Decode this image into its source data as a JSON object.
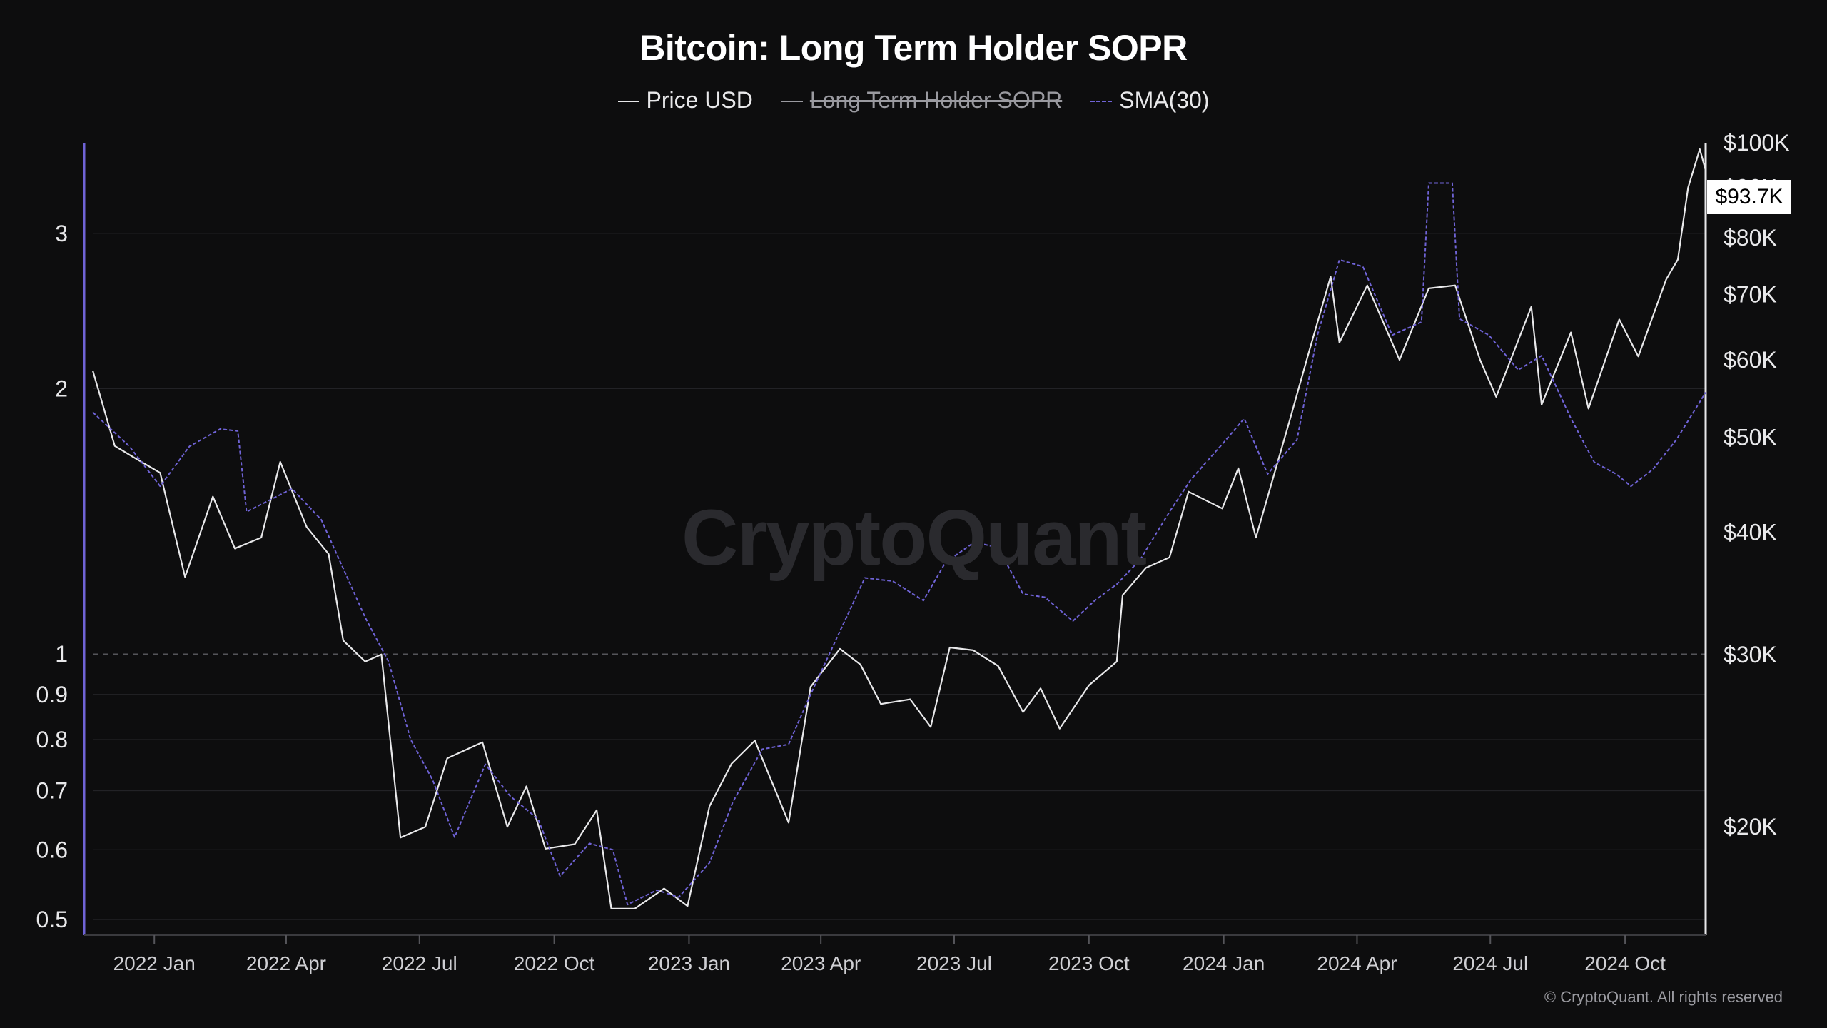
{
  "title": "Bitcoin: Long Term Holder SOPR",
  "legend": [
    {
      "label": "Price USD",
      "style": "solid",
      "color": "#e8e8ea",
      "hidden": false
    },
    {
      "label": "Long Term Holder SOPR",
      "style": "solid",
      "color": "#9a9aa0",
      "hidden": true
    },
    {
      "label": "SMA(30)",
      "style": "dashed",
      "color": "#6f63d6",
      "hidden": false
    }
  ],
  "watermark": "CryptoQuant",
  "copyright": "© CryptoQuant. All rights reserved",
  "current_price_label": "$93.7K",
  "colors": {
    "background": "#0d0d0e",
    "price_line": "#e8e8ea",
    "sma_line": "#6f63d6",
    "grid": "#26262a",
    "reference_line": "#55555a"
  },
  "chart_data": {
    "type": "line",
    "title": "Bitcoin: Long Term Holder SOPR",
    "x_ticks": [
      "2022 Jan",
      "2022 Apr",
      "2022 Jul",
      "2022 Oct",
      "2023 Jan",
      "2023 Apr",
      "2023 Jul",
      "2023 Oct",
      "2024 Jan",
      "2024 Apr",
      "2024 Jul",
      "2024 Oct"
    ],
    "x_range": [
      "2021-11-20",
      "2024-11-25"
    ],
    "y_left": {
      "label": "",
      "scale": "log",
      "ticks": [
        0.5,
        0.6,
        0.7,
        0.8,
        0.9,
        1,
        2,
        3
      ],
      "tick_labels": [
        "0.5",
        "0.6",
        "0.7",
        "0.8",
        "0.9",
        "1",
        "2",
        "3"
      ],
      "range": [
        0.48,
        3.8
      ],
      "reference_line": 1
    },
    "y_right": {
      "label": "",
      "scale": "log",
      "ticks": [
        20000,
        30000,
        40000,
        50000,
        60000,
        70000,
        80000,
        90000,
        100000
      ],
      "tick_labels": [
        "$20K",
        "$30K",
        "$40K",
        "$50K",
        "$60K",
        "$70K",
        "$80K",
        "$90K",
        "$100K"
      ],
      "range": [
        15500,
        100000
      ]
    },
    "grid": true,
    "legend_position": "top-center",
    "series": [
      {
        "name": "Price USD",
        "axis": "right",
        "points": [
          [
            "2021-11-20",
            58500
          ],
          [
            "2021-12-05",
            49000
          ],
          [
            "2021-12-20",
            47500
          ],
          [
            "2022-01-05",
            46000
          ],
          [
            "2022-01-22",
            36000
          ],
          [
            "2022-02-10",
            43500
          ],
          [
            "2022-02-25",
            38500
          ],
          [
            "2022-03-15",
            39500
          ],
          [
            "2022-03-28",
            47200
          ],
          [
            "2022-04-15",
            40500
          ],
          [
            "2022-04-30",
            38000
          ],
          [
            "2022-05-10",
            31000
          ],
          [
            "2022-05-25",
            29500
          ],
          [
            "2022-06-05",
            30000
          ],
          [
            "2022-06-18",
            19500
          ],
          [
            "2022-07-05",
            20000
          ],
          [
            "2022-07-20",
            23500
          ],
          [
            "2022-08-13",
            24400
          ],
          [
            "2022-08-30",
            20000
          ],
          [
            "2022-09-12",
            22000
          ],
          [
            "2022-09-25",
            19000
          ],
          [
            "2022-10-15",
            19200
          ],
          [
            "2022-10-30",
            20800
          ],
          [
            "2022-11-09",
            16500
          ],
          [
            "2022-11-25",
            16500
          ],
          [
            "2022-12-15",
            17300
          ],
          [
            "2022-12-31",
            16600
          ],
          [
            "2023-01-15",
            21000
          ],
          [
            "2023-01-30",
            23200
          ],
          [
            "2023-02-15",
            24500
          ],
          [
            "2023-03-10",
            20200
          ],
          [
            "2023-03-25",
            27800
          ],
          [
            "2023-04-14",
            30400
          ],
          [
            "2023-04-28",
            29300
          ],
          [
            "2023-05-12",
            26700
          ],
          [
            "2023-06-01",
            27000
          ],
          [
            "2023-06-15",
            25300
          ],
          [
            "2023-06-28",
            30500
          ],
          [
            "2023-07-14",
            30300
          ],
          [
            "2023-07-31",
            29200
          ],
          [
            "2023-08-17",
            26200
          ],
          [
            "2023-08-29",
            27700
          ],
          [
            "2023-09-11",
            25200
          ],
          [
            "2023-10-01",
            27900
          ],
          [
            "2023-10-20",
            29500
          ],
          [
            "2023-10-24",
            34500
          ],
          [
            "2023-11-09",
            36800
          ],
          [
            "2023-11-25",
            37700
          ],
          [
            "2023-12-08",
            44000
          ],
          [
            "2023-12-31",
            42300
          ],
          [
            "2024-01-11",
            46500
          ],
          [
            "2024-01-23",
            39500
          ],
          [
            "2024-02-15",
            52000
          ],
          [
            "2024-02-28",
            61000
          ],
          [
            "2024-03-14",
            73000
          ],
          [
            "2024-03-20",
            62500
          ],
          [
            "2024-04-08",
            71500
          ],
          [
            "2024-04-30",
            60000
          ],
          [
            "2024-05-20",
            71000
          ],
          [
            "2024-06-07",
            71500
          ],
          [
            "2024-06-24",
            60000
          ],
          [
            "2024-07-05",
            55000
          ],
          [
            "2024-07-29",
            68000
          ],
          [
            "2024-08-05",
            54000
          ],
          [
            "2024-08-25",
            64000
          ],
          [
            "2024-09-06",
            53500
          ],
          [
            "2024-09-27",
            66000
          ],
          [
            "2024-10-10",
            60500
          ],
          [
            "2024-10-29",
            72500
          ],
          [
            "2024-11-06",
            76000
          ],
          [
            "2024-11-13",
            90000
          ],
          [
            "2024-11-21",
            98500
          ],
          [
            "2024-11-25",
            93700
          ]
        ]
      },
      {
        "name": "SMA(30)",
        "axis": "left",
        "points": [
          [
            "2021-11-20",
            1.88
          ],
          [
            "2021-12-15",
            1.72
          ],
          [
            "2022-01-05",
            1.55
          ],
          [
            "2022-01-25",
            1.72
          ],
          [
            "2022-02-15",
            1.8
          ],
          [
            "2022-02-27",
            1.79
          ],
          [
            "2022-03-05",
            1.45
          ],
          [
            "2022-04-05",
            1.54
          ],
          [
            "2022-04-25",
            1.42
          ],
          [
            "2022-05-10",
            1.25
          ],
          [
            "2022-05-25",
            1.1
          ],
          [
            "2022-06-10",
            0.98
          ],
          [
            "2022-06-25",
            0.8
          ],
          [
            "2022-07-10",
            0.72
          ],
          [
            "2022-07-25",
            0.62
          ],
          [
            "2022-08-15",
            0.75
          ],
          [
            "2022-09-01",
            0.69
          ],
          [
            "2022-09-20",
            0.65
          ],
          [
            "2022-10-05",
            0.56
          ],
          [
            "2022-10-25",
            0.61
          ],
          [
            "2022-11-10",
            0.6
          ],
          [
            "2022-11-20",
            0.52
          ],
          [
            "2022-12-10",
            0.54
          ],
          [
            "2022-12-25",
            0.53
          ],
          [
            "2023-01-15",
            0.58
          ],
          [
            "2023-01-31",
            0.68
          ],
          [
            "2023-02-20",
            0.78
          ],
          [
            "2023-03-10",
            0.79
          ],
          [
            "2023-03-25",
            0.9
          ],
          [
            "2023-04-15",
            1.07
          ],
          [
            "2023-05-01",
            1.22
          ],
          [
            "2023-05-20",
            1.21
          ],
          [
            "2023-06-10",
            1.15
          ],
          [
            "2023-06-25",
            1.27
          ],
          [
            "2023-07-15",
            1.34
          ],
          [
            "2023-07-31",
            1.32
          ],
          [
            "2023-08-17",
            1.17
          ],
          [
            "2023-09-01",
            1.16
          ],
          [
            "2023-09-20",
            1.09
          ],
          [
            "2023-10-05",
            1.15
          ],
          [
            "2023-10-20",
            1.2
          ],
          [
            "2023-11-05",
            1.28
          ],
          [
            "2023-11-25",
            1.45
          ],
          [
            "2023-12-10",
            1.58
          ],
          [
            "2023-12-31",
            1.73
          ],
          [
            "2024-01-15",
            1.85
          ],
          [
            "2024-01-31",
            1.6
          ],
          [
            "2024-02-20",
            1.75
          ],
          [
            "2024-03-05",
            2.3
          ],
          [
            "2024-03-20",
            2.8
          ],
          [
            "2024-04-05",
            2.75
          ],
          [
            "2024-04-25",
            2.3
          ],
          [
            "2024-05-15",
            2.38
          ],
          [
            "2024-05-20",
            3.42
          ],
          [
            "2024-06-05",
            3.42
          ],
          [
            "2024-06-10",
            2.4
          ],
          [
            "2024-06-30",
            2.3
          ],
          [
            "2024-07-20",
            2.1
          ],
          [
            "2024-08-05",
            2.18
          ],
          [
            "2024-08-25",
            1.85
          ],
          [
            "2024-09-10",
            1.65
          ],
          [
            "2024-09-25",
            1.6
          ],
          [
            "2024-10-05",
            1.55
          ],
          [
            "2024-10-20",
            1.62
          ],
          [
            "2024-11-05",
            1.75
          ],
          [
            "2024-11-25",
            1.98
          ]
        ]
      }
    ]
  }
}
